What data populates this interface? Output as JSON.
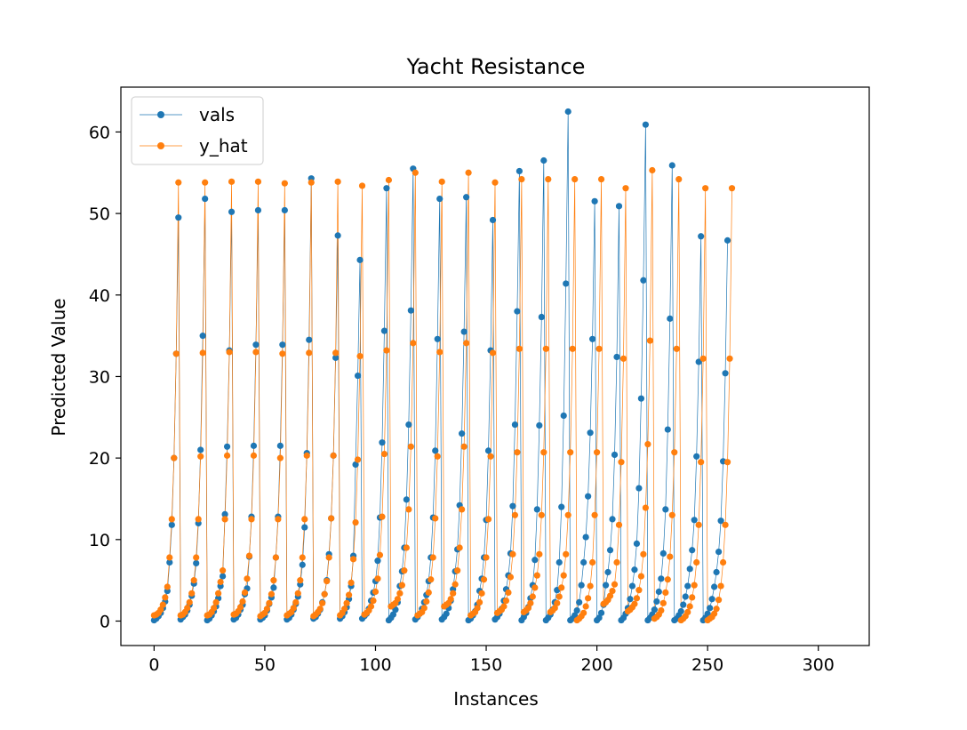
{
  "chart_data": {
    "type": "line",
    "title": "Yacht Resistance",
    "xlabel": "Instances",
    "ylabel": "Predicted Value",
    "xlim": [
      -15,
      323
    ],
    "ylim": [
      -3,
      65.5
    ],
    "xticks": [
      0,
      50,
      100,
      150,
      200,
      250,
      300
    ],
    "yticks": [
      0,
      10,
      20,
      30,
      40,
      50,
      60
    ],
    "grid": false,
    "legend_position": "top-left",
    "marker": "circle",
    "cycle_length": 14,
    "num_points": 308,
    "series": [
      {
        "name": "vals",
        "color": "#1f77b4",
        "values": [
          0.1,
          0.3,
          0.6,
          1.0,
          1.6,
          2.4,
          3.7,
          7.2,
          11.8,
          20.0,
          32.8,
          49.5,
          0.2,
          0.5,
          0.8,
          1.3,
          2.0,
          3.1,
          4.6,
          7.1,
          12.0,
          21.0,
          35.0,
          51.8,
          0.1,
          0.3,
          0.7,
          1.2,
          1.8,
          2.8,
          4.3,
          5.5,
          13.1,
          21.4,
          33.2,
          50.2,
          0.2,
          0.4,
          0.8,
          1.4,
          2.0,
          3.3,
          4.0,
          7.9,
          12.8,
          21.5,
          33.9,
          50.4,
          0.2,
          0.4,
          0.7,
          1.3,
          2.1,
          2.9,
          4.1,
          7.8,
          12.8,
          21.5,
          33.9,
          50.4,
          0.2,
          0.4,
          0.8,
          1.4,
          2.1,
          3.0,
          4.5,
          6.9,
          11.5,
          20.6,
          34.5,
          54.3,
          0.3,
          0.5,
          0.9,
          1.4,
          2.3,
          3.3,
          5.0,
          8.2,
          12.6,
          20.3,
          32.3,
          47.3,
          0.3,
          0.6,
          1.1,
          1.7,
          2.7,
          4.3,
          8.0,
          19.2,
          30.1,
          44.3,
          0.3,
          0.6,
          0.9,
          1.5,
          2.5,
          3.5,
          4.9,
          7.4,
          12.7,
          21.9,
          35.6,
          53.1,
          0.1,
          0.4,
          0.8,
          1.4,
          2.3,
          4.3,
          6.1,
          9.0,
          14.9,
          24.1,
          38.1,
          55.5,
          0.2,
          0.5,
          0.9,
          1.5,
          2.3,
          3.2,
          4.9,
          7.8,
          12.7,
          20.9,
          34.6,
          51.8,
          0.2,
          0.5,
          0.9,
          1.6,
          2.5,
          3.9,
          6.1,
          8.8,
          14.2,
          23.0,
          35.5,
          52.0,
          0.1,
          0.3,
          0.7,
          1.2,
          2.0,
          3.7,
          5.2,
          7.8,
          12.4,
          20.9,
          33.2,
          49.2,
          0.2,
          0.5,
          0.9,
          1.5,
          2.5,
          3.9,
          5.6,
          8.3,
          14.1,
          24.1,
          38.0,
          55.2,
          0.1,
          0.5,
          1.0,
          1.7,
          2.8,
          4.4,
          7.5,
          13.7,
          24.0,
          37.3,
          56.5,
          0.1,
          0.4,
          0.8,
          1.4,
          2.3,
          3.8,
          7.2,
          14.0,
          25.2,
          41.4,
          62.5,
          0.1,
          0.3,
          0.7,
          1.3,
          2.3,
          4.4,
          7.2,
          10.3,
          15.3,
          23.1,
          34.6,
          51.5,
          0.1,
          0.4,
          1.0,
          2.0,
          4.4,
          6.0,
          8.7,
          12.5,
          20.4,
          32.4,
          50.9,
          0.1,
          0.4,
          0.9,
          1.6,
          2.7,
          4.3,
          6.3,
          9.5,
          16.3,
          27.3,
          41.8,
          60.9,
          0.1,
          0.4,
          0.8,
          1.4,
          2.4,
          3.6,
          5.2,
          8.3,
          13.7,
          23.5,
          37.1,
          55.9,
          0.1,
          0.3,
          0.7,
          1.2,
          2.0,
          3.0,
          4.3,
          6.4,
          8.7,
          12.4,
          20.2,
          31.8,
          47.2,
          0.1,
          0.4,
          0.9,
          1.6,
          2.7,
          4.2,
          6.0,
          8.5,
          12.3,
          19.6,
          30.4,
          46.7
        ]
      },
      {
        "name": "y_hat",
        "color": "#ff7f0e",
        "values": [
          0.7,
          0.8,
          1.0,
          1.4,
          2.0,
          2.9,
          4.2,
          7.8,
          12.5,
          20.0,
          32.8,
          53.8,
          0.7,
          0.8,
          1.1,
          1.6,
          2.3,
          3.4,
          5.0,
          7.8,
          12.5,
          20.2,
          32.9,
          53.8,
          0.7,
          0.8,
          1.1,
          1.6,
          2.3,
          3.4,
          4.8,
          6.2,
          12.5,
          20.3,
          33.0,
          53.9,
          0.8,
          0.9,
          1.2,
          1.7,
          2.4,
          3.5,
          5.2,
          8.0,
          12.5,
          20.3,
          33.0,
          53.9,
          0.6,
          0.8,
          1.0,
          1.5,
          2.2,
          3.3,
          5.0,
          7.8,
          12.5,
          20.0,
          32.8,
          53.7,
          0.7,
          0.9,
          1.1,
          1.6,
          2.3,
          3.4,
          5.0,
          7.8,
          12.5,
          20.3,
          32.9,
          53.8,
          0.6,
          0.8,
          1.1,
          1.5,
          2.2,
          3.3,
          4.9,
          7.8,
          12.6,
          20.3,
          32.9,
          53.9,
          0.7,
          1.0,
          1.5,
          2.2,
          3.2,
          4.7,
          7.6,
          12.1,
          19.8,
          32.5,
          53.4,
          0.8,
          1.0,
          1.3,
          1.8,
          2.5,
          3.6,
          5.2,
          8.1,
          12.8,
          20.5,
          33.2,
          54.1,
          1.8,
          2.0,
          2.2,
          2.7,
          3.4,
          4.4,
          6.2,
          9.0,
          13.7,
          21.4,
          34.1,
          55.0,
          0.7,
          0.9,
          1.1,
          1.6,
          2.4,
          3.5,
          5.1,
          7.8,
          12.6,
          20.2,
          33.0,
          53.9,
          1.8,
          2.0,
          2.2,
          2.7,
          3.4,
          4.5,
          6.2,
          9.0,
          13.7,
          21.4,
          34.1,
          55.0,
          0.7,
          0.9,
          1.1,
          1.6,
          2.3,
          3.4,
          5.1,
          7.8,
          12.5,
          20.2,
          32.9,
          53.8,
          1.0,
          1.2,
          1.4,
          1.8,
          2.5,
          3.5,
          5.4,
          8.2,
          13.0,
          20.7,
          33.4,
          54.2,
          1.1,
          1.3,
          1.6,
          2.2,
          3.0,
          4.1,
          5.6,
          8.2,
          13.0,
          20.7,
          33.4,
          54.2,
          1.1,
          1.3,
          1.6,
          2.2,
          3.0,
          4.1,
          5.6,
          8.2,
          13.0,
          20.7,
          33.4,
          54.2,
          0.1,
          0.3,
          0.6,
          1.0,
          1.8,
          2.8,
          4.3,
          7.2,
          13.0,
          20.7,
          33.4,
          54.2,
          2.1,
          2.3,
          2.6,
          3.1,
          3.7,
          4.5,
          7.2,
          11.8,
          19.5,
          32.2,
          53.1,
          1.2,
          1.4,
          1.7,
          2.1,
          2.8,
          3.8,
          5.5,
          8.2,
          13.9,
          21.7,
          34.4,
          55.3,
          0.3,
          0.5,
          0.8,
          1.3,
          2.2,
          3.5,
          5.1,
          7.9,
          13.0,
          20.7,
          33.4,
          54.2,
          0.1,
          0.3,
          0.6,
          1.1,
          1.8,
          2.9,
          4.4,
          7.2,
          11.8,
          19.5,
          32.2,
          53.1,
          0.1,
          0.3,
          0.5,
          0.9,
          1.5,
          2.6,
          4.3,
          7.2,
          11.8,
          19.5,
          32.2,
          53.1
        ]
      }
    ]
  }
}
